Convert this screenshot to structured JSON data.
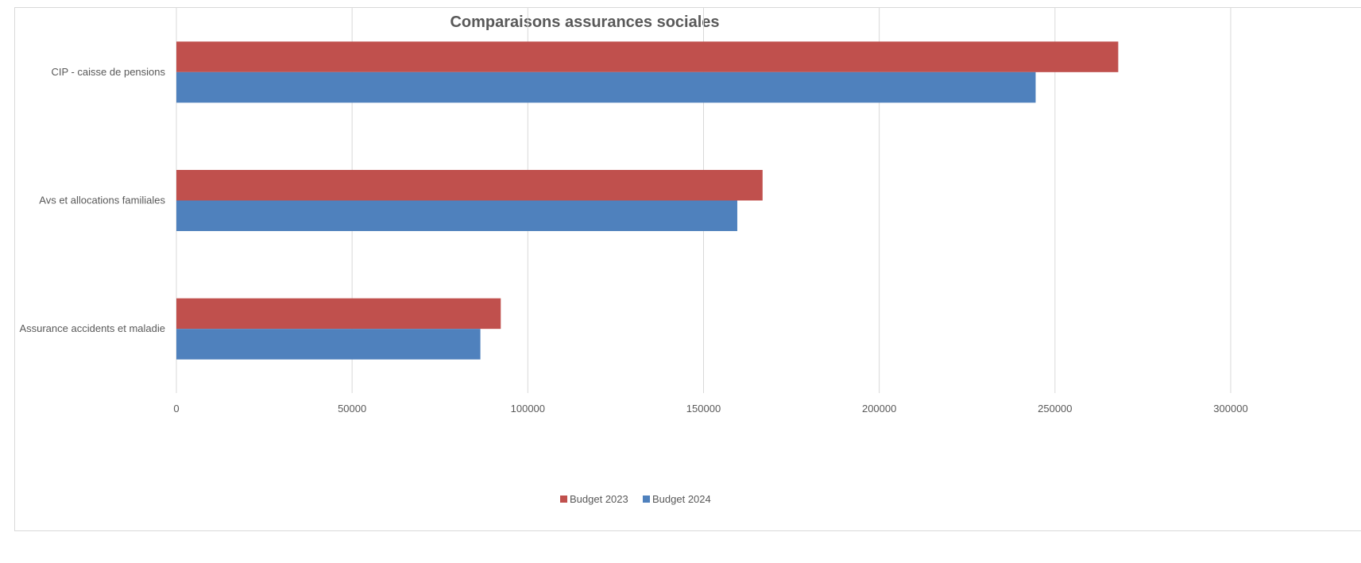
{
  "chart_data": {
    "type": "bar",
    "orientation": "horizontal",
    "title": "Comparaisons assurances sociales",
    "categories": [
      "CIP - caisse de pensions",
      "Avs et allocations familiales",
      "Assurance accidents et maladie"
    ],
    "series": [
      {
        "name": "Budget 2023",
        "color": "#c0504d",
        "values": [
          268000,
          166800,
          92300
        ]
      },
      {
        "name": "Budget 2024",
        "color": "#4f81bd",
        "values": [
          244500,
          159600,
          86500
        ]
      }
    ],
    "xlim": [
      0,
      300000
    ],
    "x_ticks": [
      "0",
      "50000",
      "100000",
      "150000",
      "200000",
      "250000",
      "300000"
    ],
    "grid": true,
    "legend_position": "bottom"
  }
}
